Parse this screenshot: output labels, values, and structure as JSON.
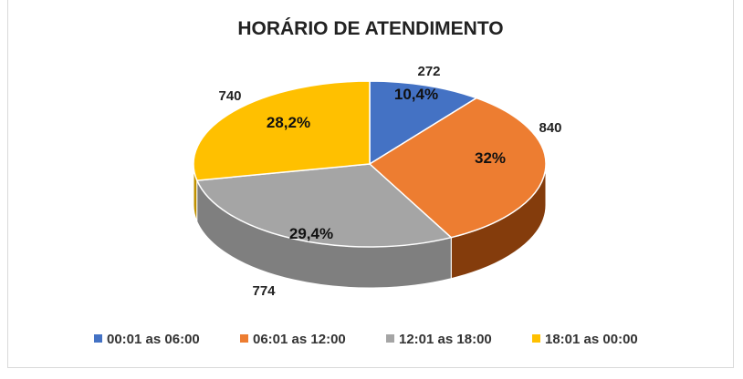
{
  "chart_data": {
    "type": "pie",
    "title": "HORÁRIO DE ATENDIMENTO",
    "legend_position": "bottom",
    "slices": [
      {
        "name": "00:01 as 06:00",
        "value": 272,
        "value_label": "272",
        "percent_label": "10,4%",
        "color": "#4472C4",
        "side_color": "#2F5597"
      },
      {
        "name": "06:01 as 12:00",
        "value": 840,
        "value_label": "840",
        "percent_label": "32%",
        "color": "#ED7D31",
        "side_color": "#843C0C"
      },
      {
        "name": "12:01 as 18:00",
        "value": 774,
        "value_label": "774",
        "percent_label": "29,4%",
        "color": "#A5A5A5",
        "side_color": "#7F7F7F"
      },
      {
        "name": "18:01 as 00:00",
        "value": 740,
        "value_label": "740",
        "percent_label": "28,2%",
        "color": "#FFC000",
        "side_color": "#BF9000"
      }
    ]
  }
}
